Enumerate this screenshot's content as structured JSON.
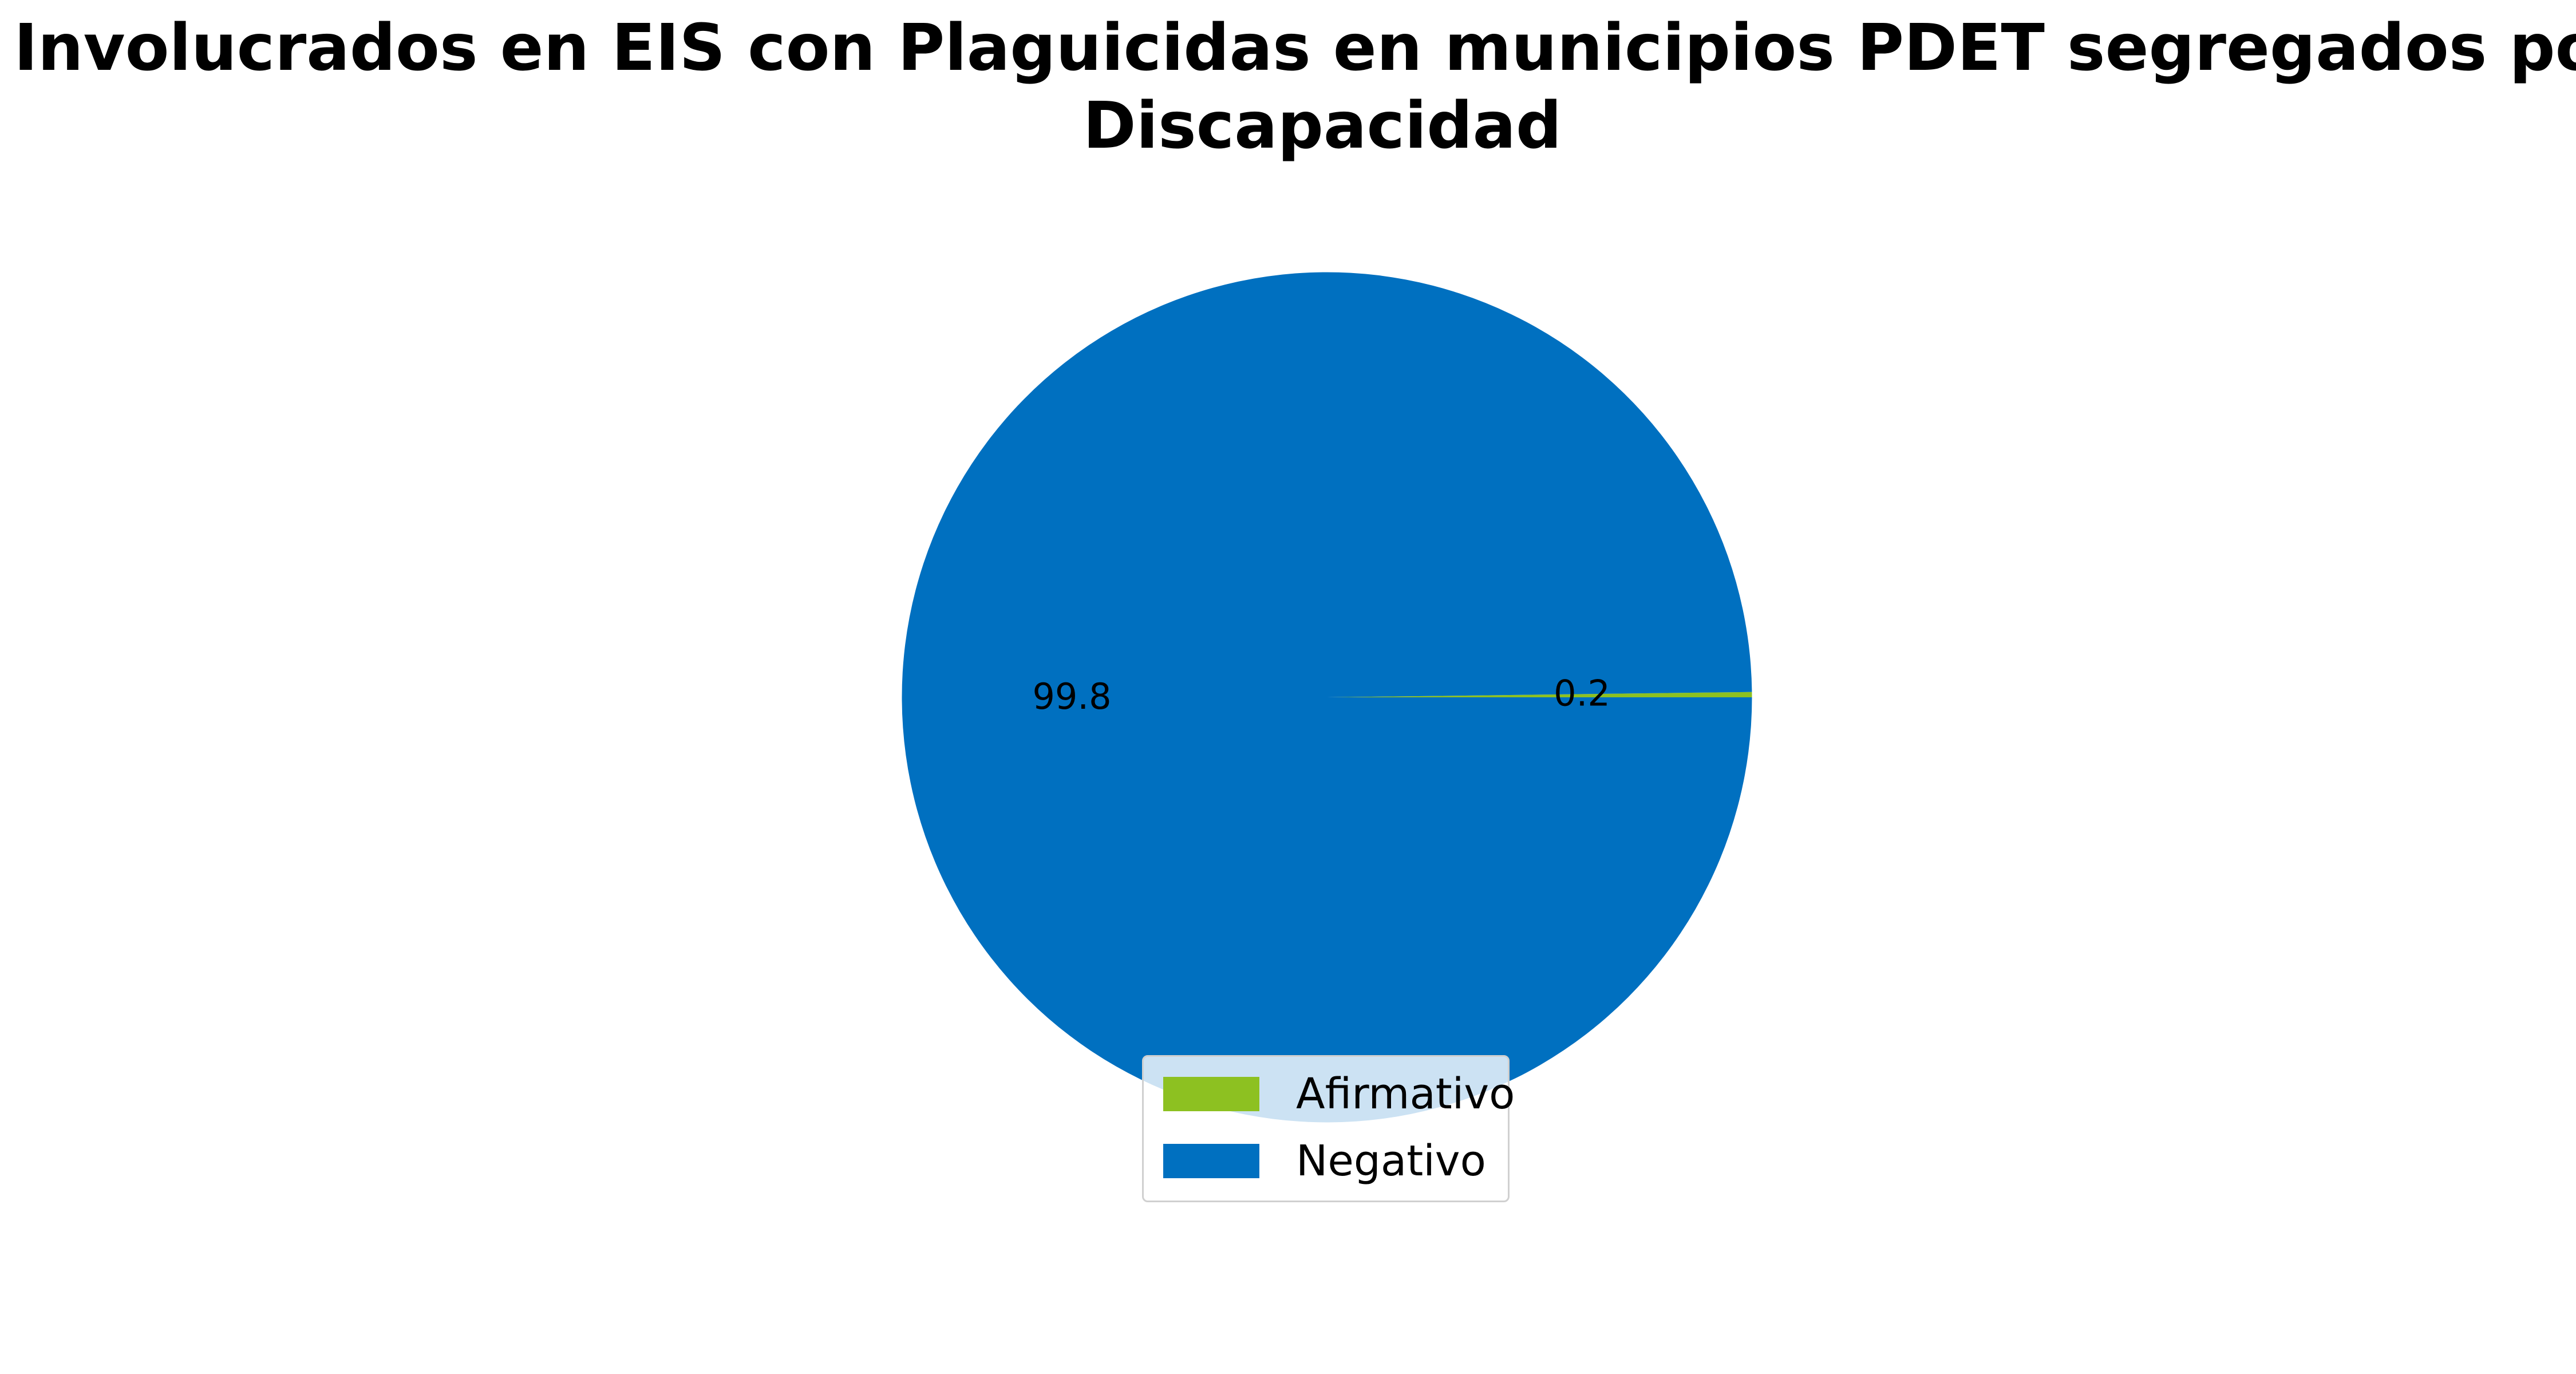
{
  "chart_data": {
    "type": "pie",
    "title": "Involucrados en EIS con Plaguicidas en municipios PDET segregados por Discapacidad",
    "title_lines": [
      "Involucrados en EIS con Plaguicidas en municipios PDET segregados por",
      "Discapacidad"
    ],
    "categories": [
      "Afirmativo",
      "Negativo"
    ],
    "values": [
      0.2,
      99.8
    ],
    "value_labels": [
      "0.2",
      "99.8"
    ],
    "colors": [
      "#8dc121",
      "#0070c0"
    ],
    "legend": {
      "placement": "bottom-center",
      "entries": [
        "Afirmativo",
        "Negativo"
      ]
    }
  }
}
